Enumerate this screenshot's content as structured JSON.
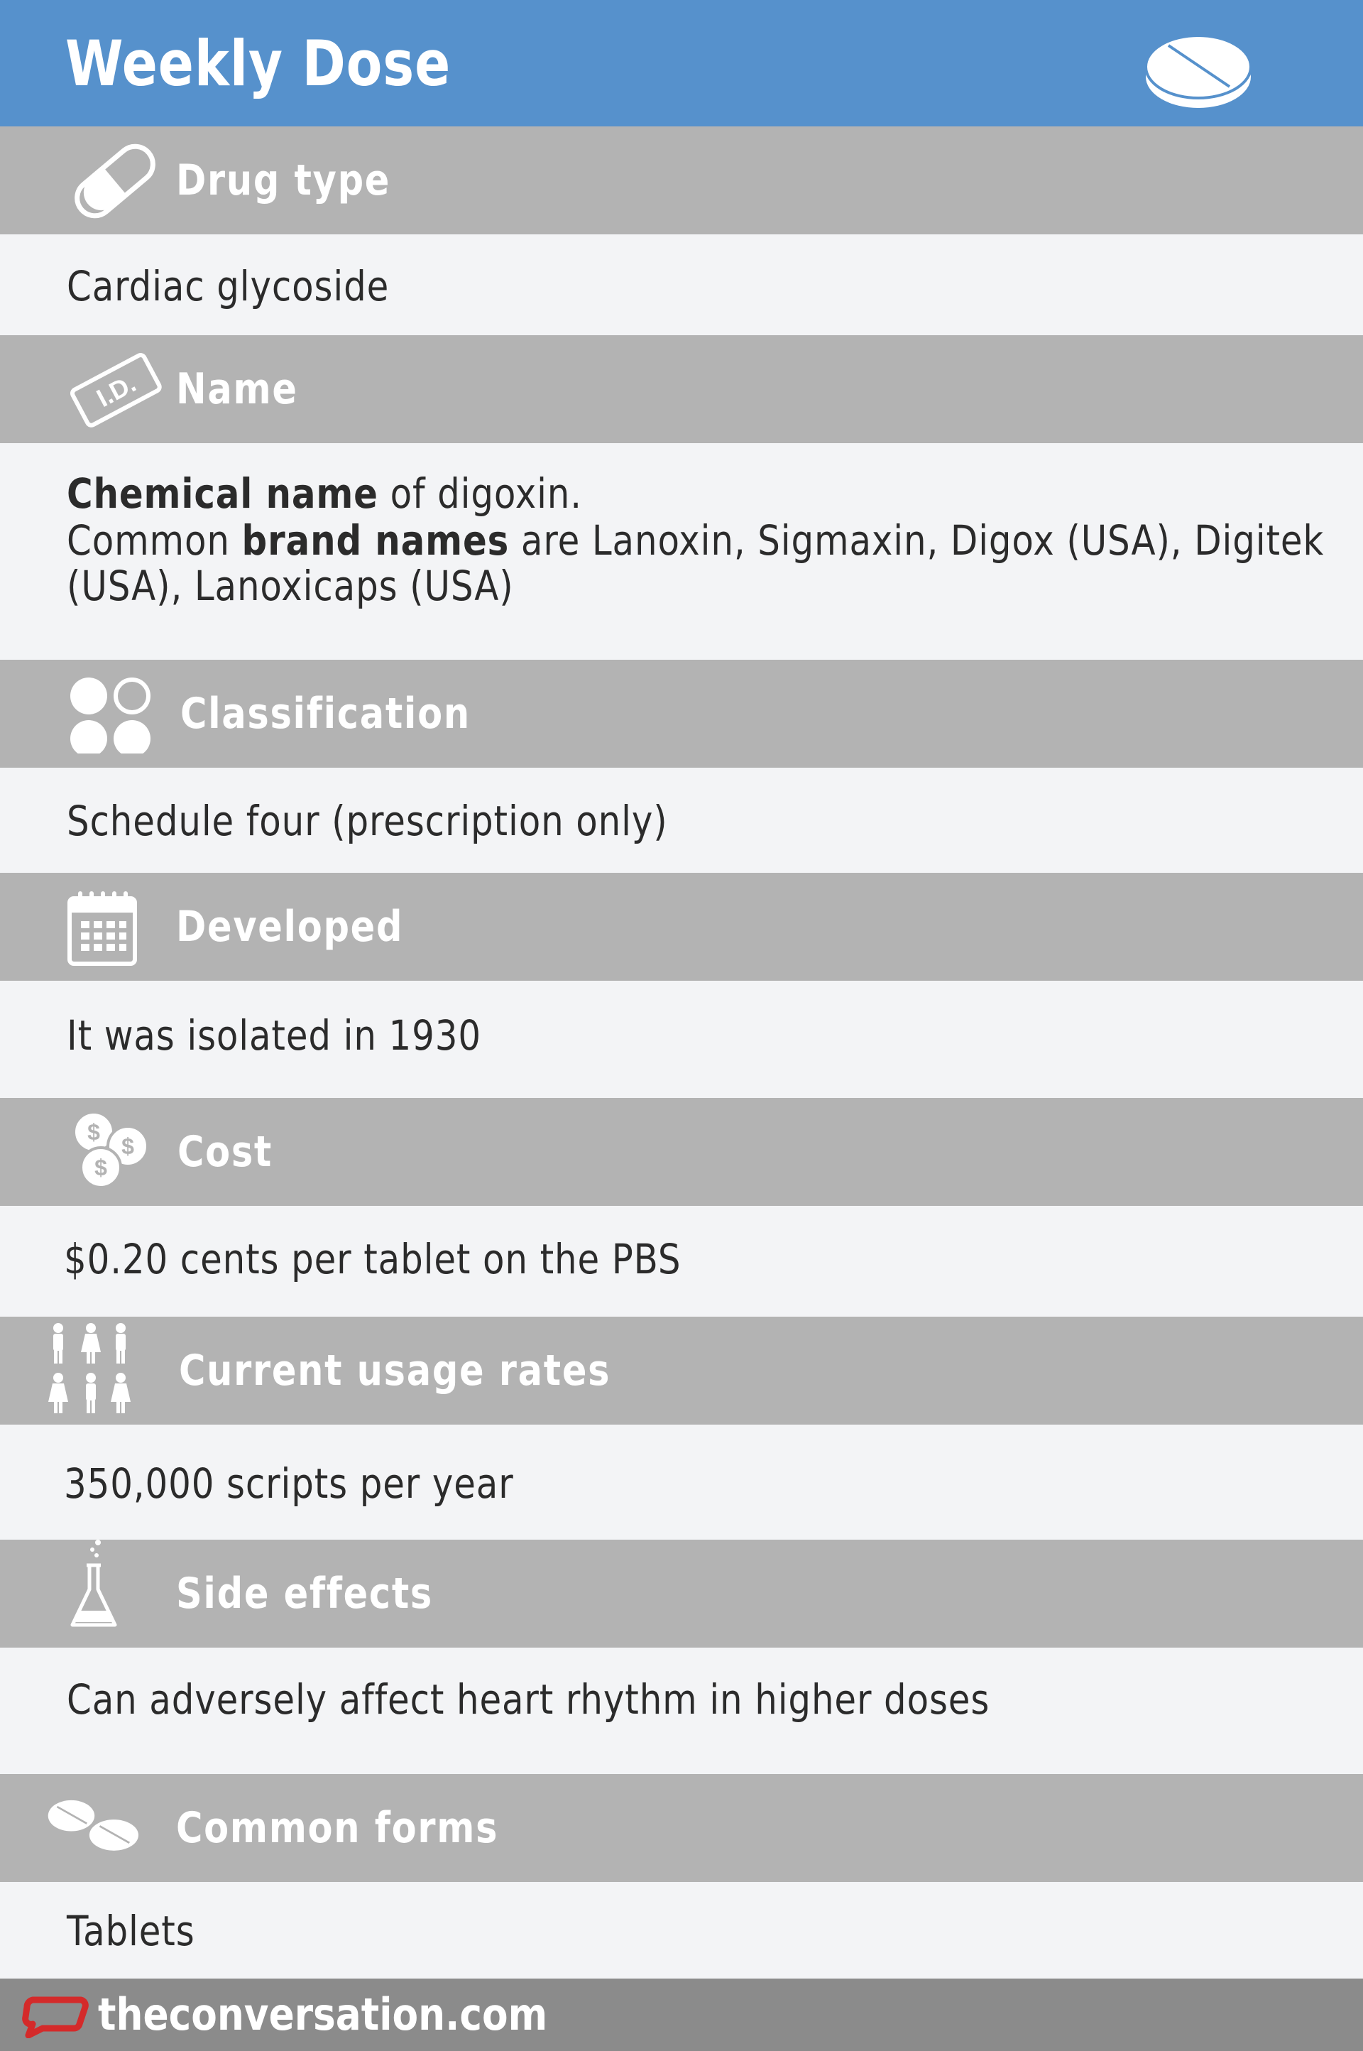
{
  "header": {
    "title": "Weekly Dose",
    "icon": "tablet-icon"
  },
  "sections": [
    {
      "label": "Drug type",
      "icon": "capsule-icon",
      "value": "Cardiac glycoside"
    },
    {
      "label": "Name",
      "icon": "id-card-icon",
      "line1_bold": "Chemical name",
      "line1_rest": " of digoxin.",
      "line2_pre": "Common ",
      "line2_bold": "brand names",
      "line2_rest": " are Lanoxin, Sigmaxin, Digox (USA), Digitek",
      "line3": "(USA), Lanoxicaps (USA)"
    },
    {
      "label": "Classification",
      "icon": "circles-icon",
      "value": "Schedule four (prescription only)"
    },
    {
      "label": "Developed",
      "icon": "calendar-icon",
      "value": "It was isolated in 1930"
    },
    {
      "label": "Cost",
      "icon": "coins-icon",
      "value": "$0.20 cents per tablet on the PBS"
    },
    {
      "label": "Current usage rates",
      "icon": "people-icon",
      "value": "350,000 scripts per year"
    },
    {
      "label": "Side effects",
      "icon": "flask-icon",
      "value": "Can adversely affect heart rhythm in higher doses"
    },
    {
      "label": "Common forms",
      "icon": "tablets-icon",
      "value": "Tablets"
    }
  ],
  "footer": {
    "site": "theconversation.com",
    "icon": "speech-bubble-logo-icon"
  },
  "colors": {
    "header": "#5691cc",
    "bar": "#b3b3b3",
    "content": "#f3f4f6",
    "footer": "#8b8b8b",
    "logo": "#d42a2a"
  }
}
